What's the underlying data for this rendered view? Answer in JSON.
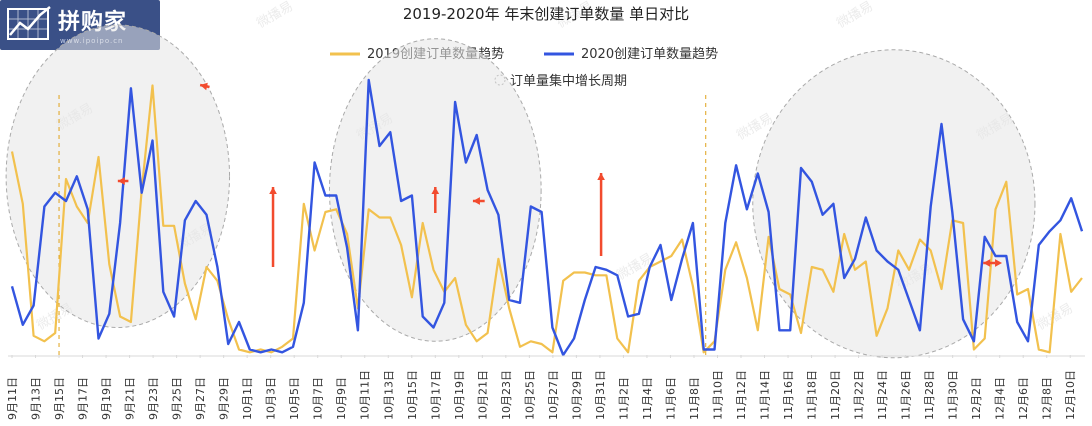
{
  "logo": {
    "text": "拼购家",
    "url": "www.ipoipo.cn"
  },
  "watermark": {
    "text": "微播易"
  },
  "chart_data": {
    "type": "line",
    "title": "2019-2020年 年末创建订单数量 单日对比",
    "legend": [
      {
        "label": "2019创建订单数量趋势",
        "color": "#F2C14E"
      },
      {
        "label": "2020创建订单数量趋势",
        "color": "#3355E0"
      },
      {
        "label": "订单量集中增长周期",
        "color": "#bbbbbb",
        "marker": "dashed-circle"
      }
    ],
    "x_start": "2020-09-11",
    "x_end": "2020-12-11",
    "x_tick_labels": [
      "9月11日",
      "9月13日",
      "9月15日",
      "9月17日",
      "9月19日",
      "9月21日",
      "9月23日",
      "9月25日",
      "9月27日",
      "9月29日",
      "10月1日",
      "10月3日",
      "10月5日",
      "10月7日",
      "10月9日",
      "10月11日",
      "10月13日",
      "10月15日",
      "10月17日",
      "10月19日",
      "10月21日",
      "10月23日",
      "10月25日",
      "10月27日",
      "10月29日",
      "10月31日",
      "11月2日",
      "11月4日",
      "11月6日",
      "11月8日",
      "11月10日",
      "11月12日",
      "11月14日",
      "11月16日",
      "11月18日",
      "11月20日",
      "11月22日",
      "11月24日",
      "11月26日",
      "11月28日",
      "11月30日",
      "12月2日",
      "12月4日",
      "12月6日",
      "12月8日",
      "12月10日"
    ],
    "ylim": [
      0,
      100
    ],
    "grid": false,
    "series": [
      {
        "name": "2019创建订单数量趋势",
        "color": "#F2C14E",
        "values": [
          74,
          55,
          7,
          5,
          8,
          64,
          54,
          48,
          72,
          33,
          14,
          12,
          60,
          98,
          47,
          47,
          26,
          13,
          32,
          27,
          13,
          2,
          1,
          2,
          1,
          3,
          6,
          55,
          38,
          52,
          53,
          44,
          17,
          53,
          50,
          50,
          40,
          21,
          48,
          31,
          23,
          28,
          11,
          5,
          8,
          35,
          17,
          3,
          5,
          4,
          1,
          27,
          30,
          30,
          29,
          29,
          6,
          1,
          27,
          32,
          34,
          36,
          42,
          25,
          1,
          5,
          31,
          41,
          28,
          9,
          43,
          24,
          22,
          8,
          32,
          31,
          23,
          44,
          31,
          34,
          7,
          17,
          38,
          31,
          42,
          38,
          24,
          49,
          48,
          2,
          6,
          53,
          63,
          22,
          24,
          2,
          1,
          44,
          23,
          28
        ],
        "highlight_indices": [
          15,
          16,
          62,
          63
        ]
      },
      {
        "name": "2020创建订单数量趋势",
        "color": "#3355E0",
        "values": [
          25,
          11,
          18,
          54,
          59,
          56,
          65,
          53,
          6,
          15,
          48,
          97,
          59,
          78,
          23,
          14,
          49,
          56,
          51,
          32,
          4,
          12,
          2,
          1,
          2,
          1,
          3,
          19,
          70,
          58,
          58,
          39,
          9,
          100,
          76,
          81,
          56,
          58,
          14,
          10,
          19,
          92,
          70,
          80,
          60,
          51,
          20,
          19,
          54,
          52,
          10,
          0,
          6,
          20,
          32,
          31,
          29,
          14,
          15,
          32,
          40,
          20,
          35,
          48,
          2,
          2,
          48,
          69,
          53,
          66,
          52,
          9,
          9,
          68,
          63,
          51,
          55,
          28,
          35,
          50,
          38,
          34,
          31,
          20,
          9,
          54,
          84,
          52,
          13,
          5,
          43,
          36,
          36,
          12,
          5,
          40,
          45,
          49,
          57,
          45
        ],
        "highlight_indices": [
          60,
          61,
          62,
          63,
          64,
          65
        ]
      }
    ],
    "annotations": [
      {
        "type": "period_circle",
        "center_x": "2020-09-20",
        "center_y": 65,
        "rx_days": 9.5,
        "ry_units": 55
      },
      {
        "type": "period_circle",
        "center_x": "2020-10-17",
        "center_y": 60,
        "rx_days": 9,
        "ry_units": 55
      },
      {
        "type": "period_circle",
        "center_x": "2020-11-25",
        "center_y": 55,
        "rx_days": 12,
        "ry_units": 56
      }
    ]
  }
}
